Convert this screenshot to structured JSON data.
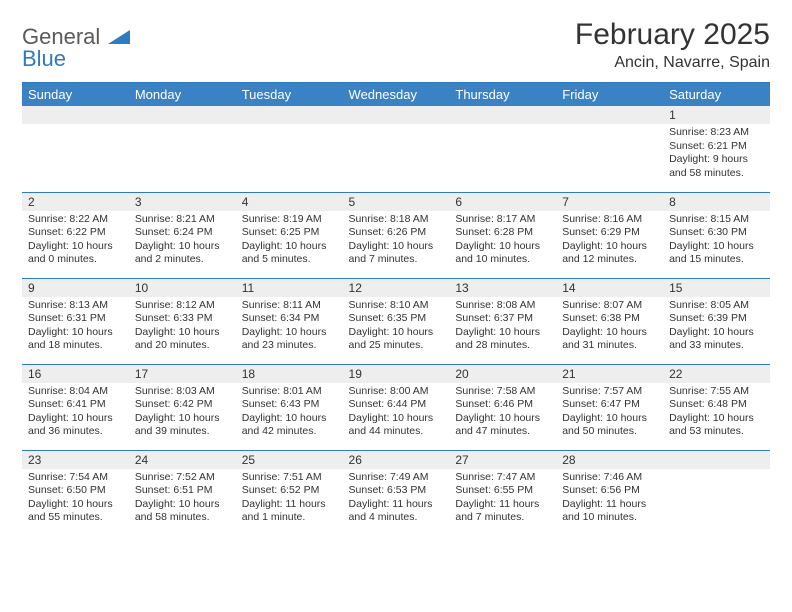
{
  "logo": {
    "general": "General",
    "blue": "Blue"
  },
  "title": "February 2025",
  "location": "Ancin, Navarre, Spain",
  "colors": {
    "header_bg": "#3b82c4",
    "header_text": "#ffffff",
    "rule": "#2f7bbf",
    "daynum_bg": "#eeeeee",
    "text": "#333333"
  },
  "weekdays": [
    "Sunday",
    "Monday",
    "Tuesday",
    "Wednesday",
    "Thursday",
    "Friday",
    "Saturday"
  ],
  "weeks": [
    [
      null,
      null,
      null,
      null,
      null,
      null,
      {
        "d": "1",
        "sr": "8:23 AM",
        "ss": "6:21 PM",
        "dl": "9 hours and 58 minutes."
      }
    ],
    [
      {
        "d": "2",
        "sr": "8:22 AM",
        "ss": "6:22 PM",
        "dl": "10 hours and 0 minutes."
      },
      {
        "d": "3",
        "sr": "8:21 AM",
        "ss": "6:24 PM",
        "dl": "10 hours and 2 minutes."
      },
      {
        "d": "4",
        "sr": "8:19 AM",
        "ss": "6:25 PM",
        "dl": "10 hours and 5 minutes."
      },
      {
        "d": "5",
        "sr": "8:18 AM",
        "ss": "6:26 PM",
        "dl": "10 hours and 7 minutes."
      },
      {
        "d": "6",
        "sr": "8:17 AM",
        "ss": "6:28 PM",
        "dl": "10 hours and 10 minutes."
      },
      {
        "d": "7",
        "sr": "8:16 AM",
        "ss": "6:29 PM",
        "dl": "10 hours and 12 minutes."
      },
      {
        "d": "8",
        "sr": "8:15 AM",
        "ss": "6:30 PM",
        "dl": "10 hours and 15 minutes."
      }
    ],
    [
      {
        "d": "9",
        "sr": "8:13 AM",
        "ss": "6:31 PM",
        "dl": "10 hours and 18 minutes."
      },
      {
        "d": "10",
        "sr": "8:12 AM",
        "ss": "6:33 PM",
        "dl": "10 hours and 20 minutes."
      },
      {
        "d": "11",
        "sr": "8:11 AM",
        "ss": "6:34 PM",
        "dl": "10 hours and 23 minutes."
      },
      {
        "d": "12",
        "sr": "8:10 AM",
        "ss": "6:35 PM",
        "dl": "10 hours and 25 minutes."
      },
      {
        "d": "13",
        "sr": "8:08 AM",
        "ss": "6:37 PM",
        "dl": "10 hours and 28 minutes."
      },
      {
        "d": "14",
        "sr": "8:07 AM",
        "ss": "6:38 PM",
        "dl": "10 hours and 31 minutes."
      },
      {
        "d": "15",
        "sr": "8:05 AM",
        "ss": "6:39 PM",
        "dl": "10 hours and 33 minutes."
      }
    ],
    [
      {
        "d": "16",
        "sr": "8:04 AM",
        "ss": "6:41 PM",
        "dl": "10 hours and 36 minutes."
      },
      {
        "d": "17",
        "sr": "8:03 AM",
        "ss": "6:42 PM",
        "dl": "10 hours and 39 minutes."
      },
      {
        "d": "18",
        "sr": "8:01 AM",
        "ss": "6:43 PM",
        "dl": "10 hours and 42 minutes."
      },
      {
        "d": "19",
        "sr": "8:00 AM",
        "ss": "6:44 PM",
        "dl": "10 hours and 44 minutes."
      },
      {
        "d": "20",
        "sr": "7:58 AM",
        "ss": "6:46 PM",
        "dl": "10 hours and 47 minutes."
      },
      {
        "d": "21",
        "sr": "7:57 AM",
        "ss": "6:47 PM",
        "dl": "10 hours and 50 minutes."
      },
      {
        "d": "22",
        "sr": "7:55 AM",
        "ss": "6:48 PM",
        "dl": "10 hours and 53 minutes."
      }
    ],
    [
      {
        "d": "23",
        "sr": "7:54 AM",
        "ss": "6:50 PM",
        "dl": "10 hours and 55 minutes."
      },
      {
        "d": "24",
        "sr": "7:52 AM",
        "ss": "6:51 PM",
        "dl": "10 hours and 58 minutes."
      },
      {
        "d": "25",
        "sr": "7:51 AM",
        "ss": "6:52 PM",
        "dl": "11 hours and 1 minute."
      },
      {
        "d": "26",
        "sr": "7:49 AM",
        "ss": "6:53 PM",
        "dl": "11 hours and 4 minutes."
      },
      {
        "d": "27",
        "sr": "7:47 AM",
        "ss": "6:55 PM",
        "dl": "11 hours and 7 minutes."
      },
      {
        "d": "28",
        "sr": "7:46 AM",
        "ss": "6:56 PM",
        "dl": "11 hours and 10 minutes."
      },
      null
    ]
  ],
  "labels": {
    "sunrise": "Sunrise:",
    "sunset": "Sunset:",
    "daylight": "Daylight:"
  }
}
